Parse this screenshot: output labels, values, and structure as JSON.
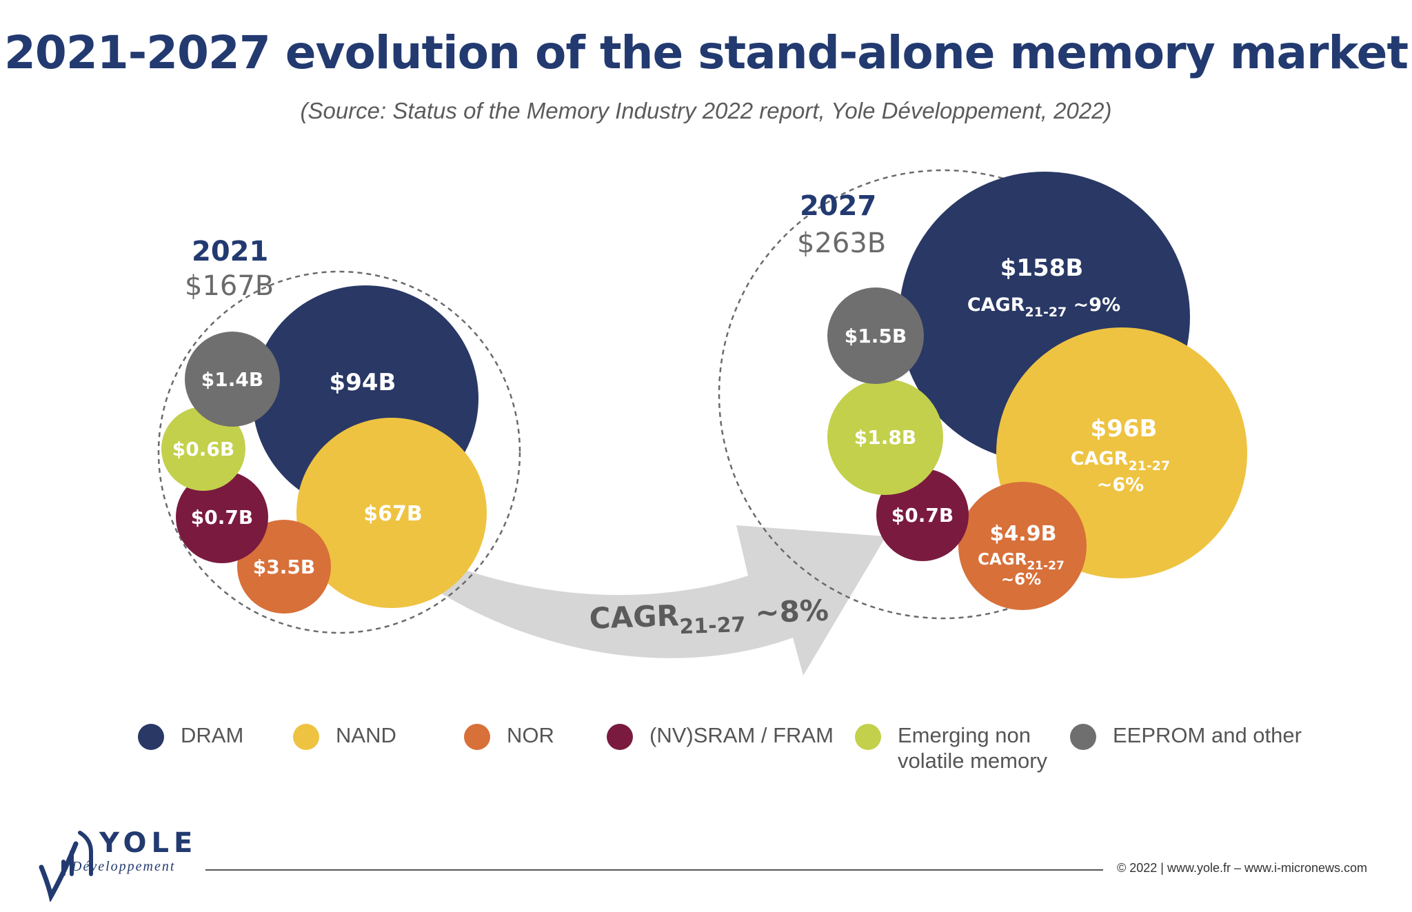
{
  "page": {
    "title": "2021-2027 evolution of the stand-alone memory market",
    "subtitle": "(Source: Status of the Memory Industry 2022 report, Yole Développement, 2022)"
  },
  "chart_data": {
    "type": "bubble",
    "title": "2021-2027 evolution of the stand-alone memory market",
    "subtitle": "(Source: Status of the Memory Industry 2022 report, Yole Développement, 2022)",
    "series_colors": {
      "DRAM": "#293865",
      "NAND": "#eec341",
      "NOR": "#d8703a",
      "(NV)SRAM / FRAM": "#7a1a3f",
      "Emerging non volatile memory": "#c3d04b",
      "EEPROM and other": "#6f6f6f"
    },
    "groups": [
      {
        "year": "2021",
        "total": "$167B",
        "segments": [
          {
            "name": "DRAM",
            "value": 94,
            "label": "$94B",
            "cagr": ""
          },
          {
            "name": "NAND",
            "value": 67,
            "label": "$67B",
            "cagr": ""
          },
          {
            "name": "NOR",
            "value": 3.5,
            "label": "$3.5B",
            "cagr": ""
          },
          {
            "name": "(NV)SRAM / FRAM",
            "value": 0.7,
            "label": "$0.7B",
            "cagr": ""
          },
          {
            "name": "Emerging non volatile memory",
            "value": 0.6,
            "label": "$0.6B",
            "cagr": ""
          },
          {
            "name": "EEPROM and other",
            "value": 1.4,
            "label": "$1.4B",
            "cagr": ""
          }
        ]
      },
      {
        "year": "2027",
        "total": "$263B",
        "segments": [
          {
            "name": "DRAM",
            "value": 158,
            "label": "$158B",
            "cagr": "~9%"
          },
          {
            "name": "NAND",
            "value": 96,
            "label": "$96B",
            "cagr": "~6%"
          },
          {
            "name": "NOR",
            "value": 4.9,
            "label": "$4.9B",
            "cagr": "~6%"
          },
          {
            "name": "(NV)SRAM / FRAM",
            "value": 0.7,
            "label": "$0.7B",
            "cagr": ""
          },
          {
            "name": "Emerging non volatile memory",
            "value": 1.8,
            "label": "$1.8B",
            "cagr": ""
          },
          {
            "name": "EEPROM and other",
            "value": 1.5,
            "label": "$1.5B",
            "cagr": ""
          }
        ]
      }
    ],
    "overall_cagr": {
      "label": "CAGR",
      "period": "21-27",
      "value": "~8%"
    },
    "cagr_label": "CAGR",
    "cagr_period": "21-27",
    "legend": [
      {
        "name": "DRAM",
        "color": "#293865"
      },
      {
        "name": "NAND",
        "color": "#eec341"
      },
      {
        "name": "NOR",
        "color": "#d8703a"
      },
      {
        "name": "(NV)SRAM / FRAM",
        "color": "#7a1a3f"
      },
      {
        "name": "Emerging non\nvolatile memory",
        "color": "#c3d04b"
      },
      {
        "name": "EEPROM and other",
        "color": "#6f6f6f"
      }
    ]
  },
  "brand": {
    "name": "YOLE",
    "tagline": "Développement",
    "primary_color": "#223a70"
  },
  "footer": {
    "text": "© 2022 | www.yole.fr – www.i-micronews.com"
  }
}
